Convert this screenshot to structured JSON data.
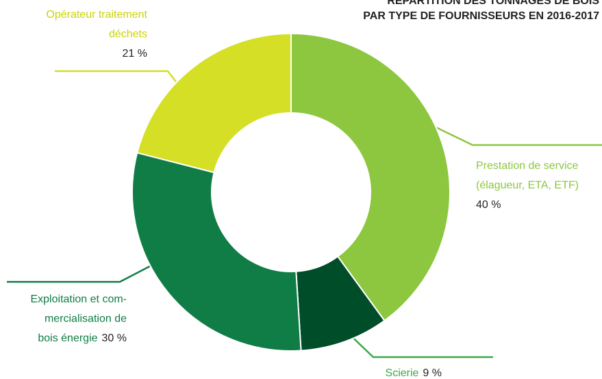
{
  "chart_data": {
    "type": "donut",
    "title": [
      "RÉPARTITION DES TONNAGES DE BOIS",
      "PAR TYPE DE FOURNISSEURS EN 2016-2017"
    ],
    "categories": [
      [
        "Prestation de service",
        "(élagueur, ETA, ETF)"
      ],
      [
        "Scierie"
      ],
      [
        "Exploitation et com-",
        "mercialisation de",
        "bois énergie"
      ],
      [
        "Opérateur traitement",
        "déchets"
      ]
    ],
    "values": [
      40,
      9,
      30,
      21
    ],
    "value_labels": [
      "40 %",
      "9 %",
      "30 %",
      "21 %"
    ],
    "colors": [
      "#8dc63f",
      "#004d2a",
      "#0f7d45",
      "#d4df26"
    ]
  }
}
